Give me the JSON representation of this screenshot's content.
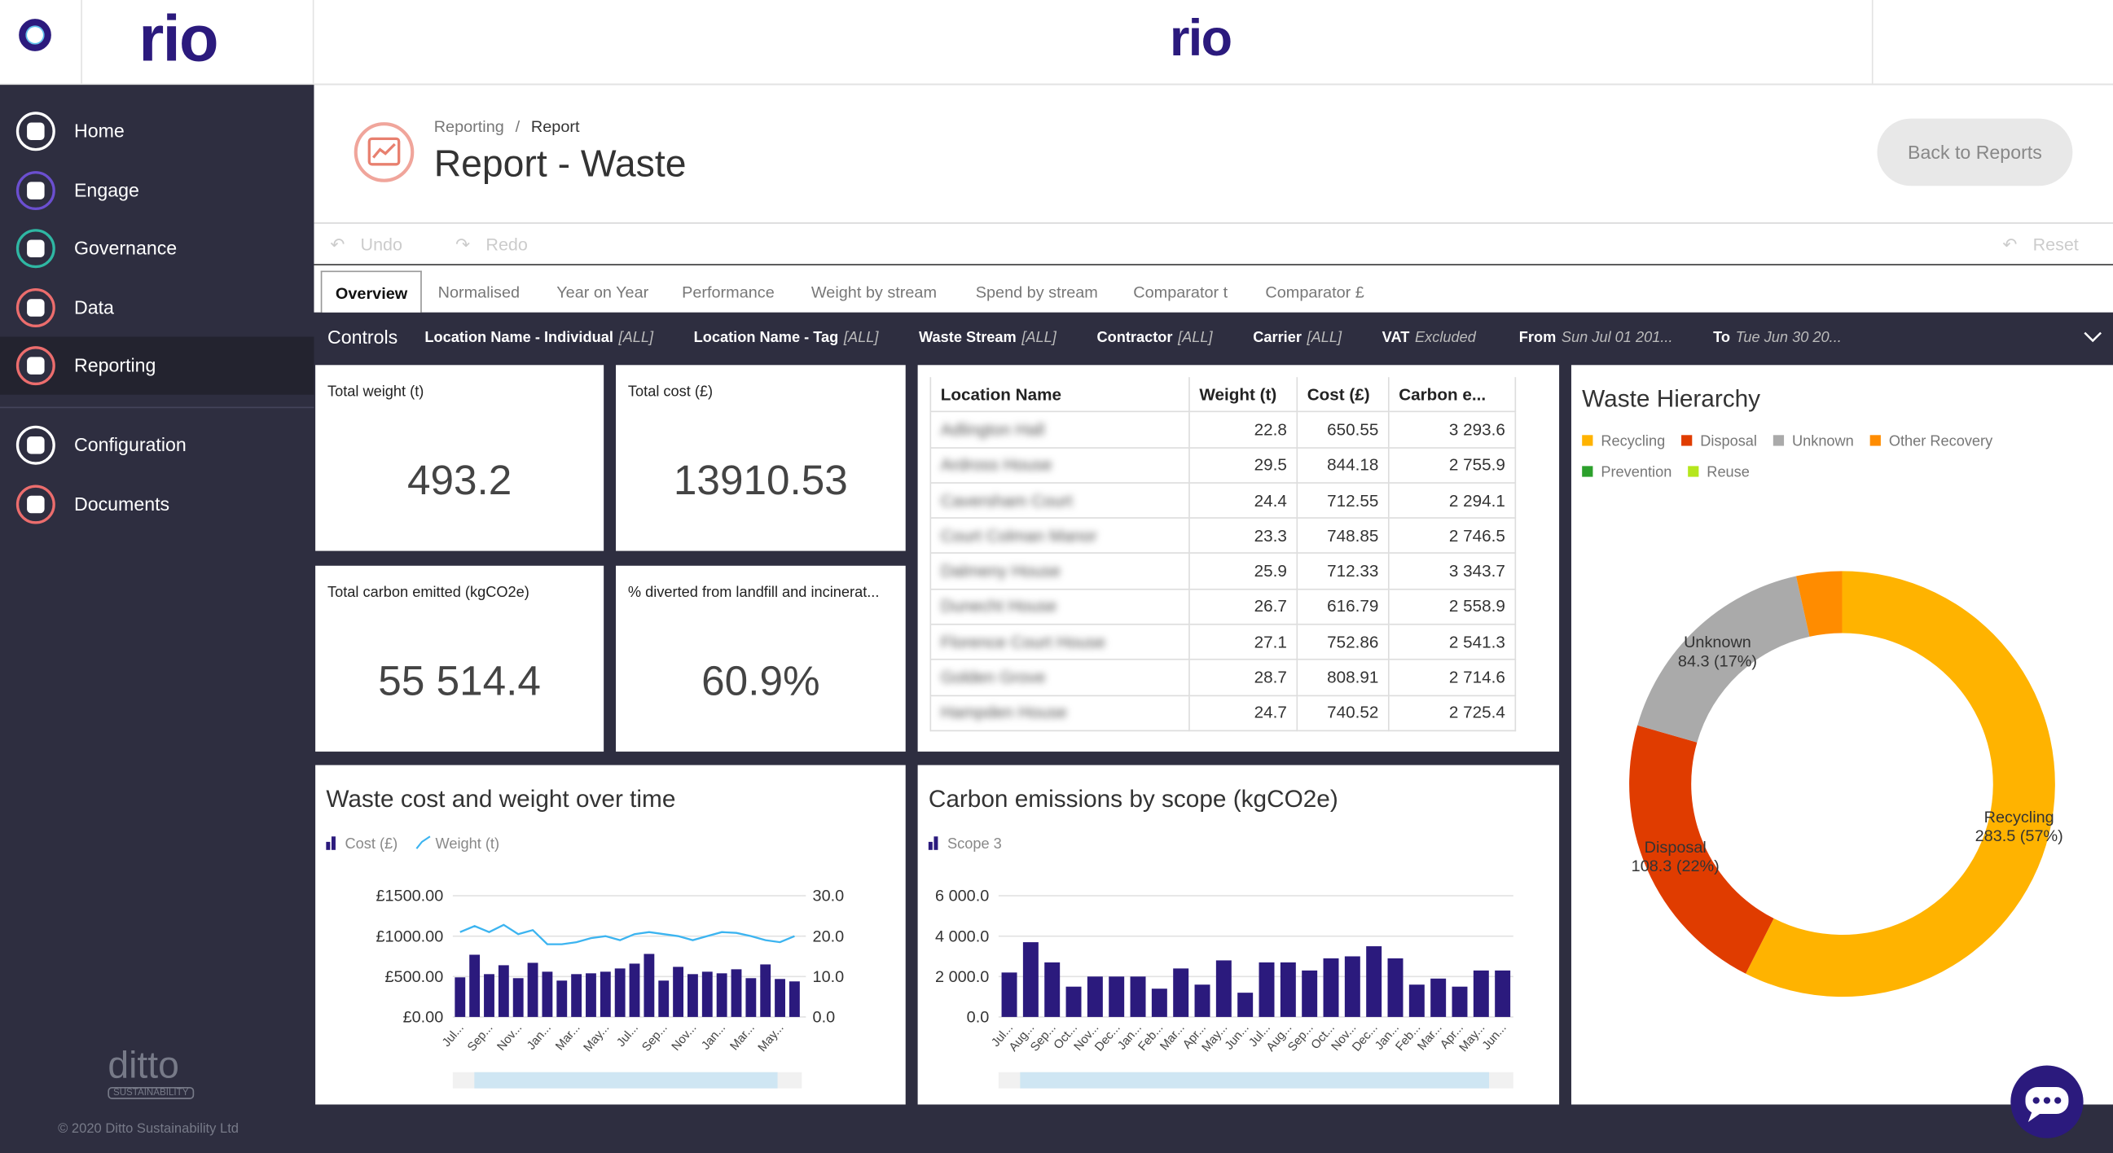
{
  "header": {
    "logo": "rio",
    "center_logo": "rio"
  },
  "nav": {
    "active_index": 4,
    "main": [
      {
        "label": "Home",
        "color": "#ffffff"
      },
      {
        "label": "Engage",
        "color": "#6b4fd0"
      },
      {
        "label": "Governance",
        "color": "#2fb7a3"
      },
      {
        "label": "Data",
        "color": "#ec6d6d"
      },
      {
        "label": "Reporting",
        "color": "#ec6d6d"
      }
    ],
    "secondary": [
      {
        "label": "Configuration",
        "color": "#ffffff"
      },
      {
        "label": "Documents",
        "color": "#ec6d6d"
      }
    ],
    "footer_logo": "ditto",
    "footer_tagline": "SUSTAINABILITY",
    "copyright": "© 2020 Ditto Sustainability Ltd"
  },
  "page": {
    "breadcrumb": [
      "Reporting",
      "Report"
    ],
    "breadcrumb_separator": "/",
    "title": "Report - Waste",
    "back_button": "Back to Reports"
  },
  "toolbar": {
    "undo": "Undo",
    "redo": "Redo",
    "reset": "Reset"
  },
  "tabs": {
    "active_index": 0,
    "items": [
      "Overview",
      "Normalised",
      "Year on Year",
      "Performance",
      "Weight by stream",
      "Spend by stream",
      "Comparator t",
      "Comparator £"
    ]
  },
  "controls": {
    "label": "Controls",
    "filters": [
      {
        "name": "Location Name - Individual",
        "value": "[ALL]"
      },
      {
        "name": "Location Name - Tag",
        "value": "[ALL]"
      },
      {
        "name": "Waste Stream",
        "value": "[ALL]"
      },
      {
        "name": "Contractor",
        "value": "[ALL]"
      },
      {
        "name": "Carrier",
        "value": "[ALL]"
      },
      {
        "name": "VAT",
        "value": "Excluded"
      },
      {
        "name": "From",
        "value": "Sun Jul 01 201..."
      },
      {
        "name": "To",
        "value": "Tue Jun 30 20..."
      }
    ]
  },
  "kpis": [
    {
      "label": "Total weight (t)",
      "value": "493.2"
    },
    {
      "label": "Total cost (£)",
      "value": "13910.53"
    },
    {
      "label": "Total carbon emitted (kgCO2e)",
      "value": "55 514.4"
    },
    {
      "label": "% diverted from landfill and incinerat...",
      "value": "60.9%"
    }
  ],
  "table": {
    "columns": [
      "Location Name",
      "Weight (t)",
      "Cost (£)",
      "Carbon e..."
    ],
    "rows": [
      [
        "Adlington Hall",
        "22.8",
        "650.55",
        "3 293.6"
      ],
      [
        "Ardross House",
        "29.5",
        "844.18",
        "2 755.9"
      ],
      [
        "Caversham Court",
        "24.4",
        "712.55",
        "2 294.1"
      ],
      [
        "Court Colman Manor",
        "23.3",
        "748.85",
        "2 746.5"
      ],
      [
        "Dalmeny House",
        "25.9",
        "712.33",
        "3 343.7"
      ],
      [
        "Dunecht House",
        "26.7",
        "616.79",
        "2 558.9"
      ],
      [
        "Florence Court House",
        "27.1",
        "752.86",
        "2 541.3"
      ],
      [
        "Golden Grove",
        "28.7",
        "808.91",
        "2 714.6"
      ],
      [
        "Hampden House",
        "24.7",
        "740.52",
        "2 725.4"
      ]
    ]
  },
  "chart_data": [
    {
      "type": "bar-line",
      "title": "Waste cost and weight over time",
      "categories": [
        "Jul...",
        null,
        "Sep...",
        null,
        "Nov...",
        null,
        "Jan...",
        null,
        "Mar...",
        null,
        "May...",
        null,
        "Jul...",
        null,
        "Sep...",
        null,
        "Nov...",
        null,
        "Jan...",
        null,
        "Mar...",
        null,
        "May...",
        null
      ],
      "series": [
        {
          "name": "Cost (£)",
          "color": "#2b1a7d",
          "values": [
            490,
            770,
            530,
            640,
            480,
            670,
            560,
            450,
            530,
            540,
            560,
            600,
            660,
            780,
            450,
            620,
            530,
            560,
            540,
            590,
            480,
            650,
            470,
            440
          ]
        },
        {
          "name": "Weight (t)",
          "color": "#3cb4f0",
          "axis": "y2",
          "values": [
            21,
            22.5,
            21,
            22.8,
            20.5,
            21.5,
            18,
            18,
            18.5,
            19.5,
            20,
            19,
            20.5,
            21,
            20.5,
            20,
            19,
            20,
            21,
            20.8,
            20,
            19,
            18.5,
            20
          ]
        }
      ],
      "ylim": [
        0,
        1500
      ],
      "yticks": [
        {
          "value": 0,
          "label": "£0.00"
        },
        {
          "value": 500,
          "label": "£500.00"
        },
        {
          "value": 1000,
          "label": "£1000.00"
        },
        {
          "value": 1500,
          "label": "£1500.00"
        }
      ],
      "y2lim": [
        0,
        30
      ],
      "y2ticks": [
        {
          "value": 0,
          "label": "0.0"
        },
        {
          "value": 10,
          "label": "10.0"
        },
        {
          "value": 20,
          "label": "20.0"
        },
        {
          "value": 30,
          "label": "30.0"
        }
      ],
      "grid": true
    },
    {
      "type": "bar",
      "title": "Carbon emissions by scope (kgCO2e)",
      "categories": [
        "Jul...",
        "Aug...",
        "Sep...",
        "Oct...",
        "Nov...",
        "Dec...",
        "Jan...",
        "Feb...",
        "Mar...",
        "Apr...",
        "May...",
        "Jun...",
        "Jul...",
        "Aug...",
        "Sep...",
        "Oct...",
        "Nov...",
        "Dec...",
        "Jan...",
        "Feb...",
        "Mar...",
        "Apr...",
        "May...",
        "Jun..."
      ],
      "series": [
        {
          "name": "Scope 3",
          "color": "#2b1a7d",
          "values": [
            2200,
            3700,
            2700,
            1500,
            2000,
            2000,
            2000,
            1400,
            2400,
            1600,
            2800,
            1200,
            2700,
            2700,
            2300,
            2900,
            3000,
            3500,
            2900,
            1600,
            1900,
            1500,
            2300,
            2300
          ]
        }
      ],
      "ylim": [
        0,
        6000
      ],
      "yticks": [
        {
          "value": 0,
          "label": "0.0"
        },
        {
          "value": 2000,
          "label": "2 000.0"
        },
        {
          "value": 4000,
          "label": "4 000.0"
        },
        {
          "value": 6000,
          "label": "6 000.0"
        }
      ],
      "grid": true
    },
    {
      "type": "donut",
      "title": "Waste Hierarchy",
      "categories": [
        "Recycling",
        "Disposal",
        "Unknown",
        "Other Recovery",
        "Prevention",
        "Reuse"
      ],
      "values": [
        283.5,
        108.3,
        84.3,
        17.1,
        0,
        0
      ],
      "value_labels": [
        "283.5 (57%)",
        "108.3 (22%)",
        "84.3 (17%)",
        null,
        null,
        null
      ],
      "colors": [
        "#ffb300",
        "#e03c00",
        "#aaaaaa",
        "#ff8c00",
        "#2ca02c",
        "#b5e61d"
      ]
    }
  ]
}
